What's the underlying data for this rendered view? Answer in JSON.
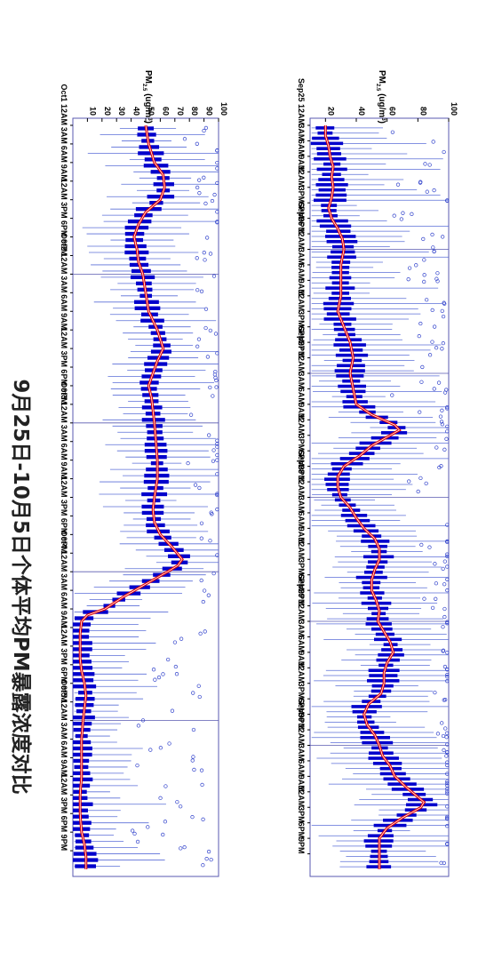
{
  "title": "9月25日-10月5日个体平均PM暴露浓度对比",
  "colors": {
    "box": "#0000cc",
    "whisker": "#5b6fd8",
    "outlier": "#3344cc",
    "mean_line": "#e00000",
    "frame": "#5a5ab0"
  },
  "chart_data": [
    {
      "type": "box",
      "orientation": "vertical-time",
      "ylabel": "PM",
      "ylabel_sub": "2.5",
      "ylabel_unit": " (ug/m",
      "ylabel_sup": "3",
      "ylabel_close": ")",
      "ylim": [
        10,
        100
      ],
      "value_ticks": [
        "20",
        "40",
        "60",
        "80",
        "100"
      ],
      "value_tick_values": [
        20,
        40,
        60,
        80,
        100
      ],
      "start_hour": 0,
      "end_hour": 144,
      "time_ticks": [
        {
          "t": 0,
          "label": "Sep25 12AM"
        },
        {
          "t": 3,
          "label": "3AM"
        },
        {
          "t": 6,
          "label": "6AM"
        },
        {
          "t": 9,
          "label": "9AM"
        },
        {
          "t": 12,
          "label": "12AM"
        },
        {
          "t": 15,
          "label": "3PM"
        },
        {
          "t": 18,
          "label": "6PM"
        },
        {
          "t": 21,
          "label": "9PM"
        },
        {
          "t": 24,
          "label": "Sep26 12AM"
        },
        {
          "t": 27,
          "label": "3AM"
        },
        {
          "t": 30,
          "label": "6AM"
        },
        {
          "t": 33,
          "label": "9AM"
        },
        {
          "t": 36,
          "label": "12AM"
        },
        {
          "t": 39,
          "label": "3PM"
        },
        {
          "t": 42,
          "label": "6PM"
        },
        {
          "t": 45,
          "label": "9PM"
        },
        {
          "t": 48,
          "label": "Sep27 12AM"
        },
        {
          "t": 51,
          "label": "3AM"
        },
        {
          "t": 54,
          "label": "6AM"
        },
        {
          "t": 57,
          "label": "9AM"
        },
        {
          "t": 60,
          "label": "12AM"
        },
        {
          "t": 63,
          "label": "3PM"
        },
        {
          "t": 66,
          "label": "6PM"
        },
        {
          "t": 69,
          "label": "9PM"
        },
        {
          "t": 72,
          "label": "Sep28 12AM"
        },
        {
          "t": 75,
          "label": "3AM"
        },
        {
          "t": 78,
          "label": "6AM"
        },
        {
          "t": 81,
          "label": "9AM"
        },
        {
          "t": 84,
          "label": "12AM"
        },
        {
          "t": 87,
          "label": "3PM"
        },
        {
          "t": 90,
          "label": "6PM"
        },
        {
          "t": 93,
          "label": "9PM"
        },
        {
          "t": 96,
          "label": "Sep29 12AM"
        },
        {
          "t": 99,
          "label": "3AM"
        },
        {
          "t": 102,
          "label": "6AM"
        },
        {
          "t": 105,
          "label": "9AM"
        },
        {
          "t": 108,
          "label": "12AM"
        },
        {
          "t": 111,
          "label": "3PM"
        },
        {
          "t": 114,
          "label": "6PM"
        },
        {
          "t": 117,
          "label": "9PM"
        },
        {
          "t": 120,
          "label": "Sep30 12AM"
        },
        {
          "t": 123,
          "label": "3AM"
        },
        {
          "t": 126,
          "label": "6AM"
        },
        {
          "t": 129,
          "label": "9AM"
        },
        {
          "t": 132,
          "label": "12AM"
        },
        {
          "t": 135,
          "label": "3PM"
        },
        {
          "t": 138,
          "label": "6PM"
        },
        {
          "t": 141,
          "label": "9PM"
        }
      ],
      "mean_series": [
        [
          0,
          20
        ],
        [
          2,
          20
        ],
        [
          4,
          22
        ],
        [
          6,
          23
        ],
        [
          8,
          25
        ],
        [
          10,
          24
        ],
        [
          12,
          25
        ],
        [
          14,
          24
        ],
        [
          16,
          22
        ],
        [
          18,
          24
        ],
        [
          20,
          28
        ],
        [
          22,
          31
        ],
        [
          24,
          32
        ],
        [
          27,
          30
        ],
        [
          30,
          30
        ],
        [
          33,
          30
        ],
        [
          36,
          28
        ],
        [
          39,
          32
        ],
        [
          42,
          36
        ],
        [
          45,
          38
        ],
        [
          48,
          36
        ],
        [
          51,
          38
        ],
        [
          54,
          40
        ],
        [
          56,
          50
        ],
        [
          58,
          65
        ],
        [
          59,
          68
        ],
        [
          60,
          62
        ],
        [
          62,
          50
        ],
        [
          64,
          42
        ],
        [
          66,
          32
        ],
        [
          68,
          28
        ],
        [
          70,
          28
        ],
        [
          72,
          30
        ],
        [
          74,
          36
        ],
        [
          76,
          40
        ],
        [
          78,
          45
        ],
        [
          80,
          52
        ],
        [
          82,
          55
        ],
        [
          84,
          55
        ],
        [
          86,
          52
        ],
        [
          88,
          50
        ],
        [
          90,
          50
        ],
        [
          92,
          53
        ],
        [
          94,
          55
        ],
        [
          96,
          54
        ],
        [
          98,
          58
        ],
        [
          100,
          62
        ],
        [
          102,
          64
        ],
        [
          104,
          60
        ],
        [
          106,
          58
        ],
        [
          108,
          58
        ],
        [
          110,
          56
        ],
        [
          112,
          48
        ],
        [
          114,
          45
        ],
        [
          116,
          47
        ],
        [
          118,
          52
        ],
        [
          120,
          55
        ],
        [
          122,
          57
        ],
        [
          124,
          62
        ],
        [
          126,
          65
        ],
        [
          128,
          72
        ],
        [
          130,
          80
        ],
        [
          131,
          84
        ],
        [
          132,
          82
        ],
        [
          134,
          70
        ],
        [
          136,
          60
        ],
        [
          138,
          55
        ],
        [
          140,
          55
        ],
        [
          142,
          55
        ],
        [
          144,
          55
        ]
      ],
      "spread": 8
    },
    {
      "type": "box",
      "orientation": "vertical-time",
      "ylabel": "PM",
      "ylabel_sub": "2.5",
      "ylabel_unit": " (ug/m",
      "ylabel_sup": "3",
      "ylabel_close": ")",
      "ylim": [
        0,
        100
      ],
      "value_ticks": [
        "10",
        "20",
        "30",
        "40",
        "50",
        "60",
        "70",
        "80",
        "90",
        "100"
      ],
      "value_tick_values": [
        10,
        20,
        30,
        40,
        50,
        60,
        70,
        80,
        90,
        100
      ],
      "start_hour": 0,
      "end_hour": 120,
      "time_ticks": [
        {
          "t": 0,
          "label": "Oct1 12AM"
        },
        {
          "t": 3,
          "label": "3AM"
        },
        {
          "t": 6,
          "label": "6AM"
        },
        {
          "t": 9,
          "label": "9AM"
        },
        {
          "t": 12,
          "label": "12AM"
        },
        {
          "t": 15,
          "label": "3PM"
        },
        {
          "t": 18,
          "label": "6PM"
        },
        {
          "t": 21,
          "label": "9PM"
        },
        {
          "t": 24,
          "label": "Oct2 12AM"
        },
        {
          "t": 27,
          "label": "3AM"
        },
        {
          "t": 30,
          "label": "6AM"
        },
        {
          "t": 33,
          "label": "9AM"
        },
        {
          "t": 36,
          "label": "12AM"
        },
        {
          "t": 39,
          "label": "3PM"
        },
        {
          "t": 42,
          "label": "6PM"
        },
        {
          "t": 45,
          "label": "9PM"
        },
        {
          "t": 48,
          "label": "Oct3 12AM"
        },
        {
          "t": 51,
          "label": "3AM"
        },
        {
          "t": 54,
          "label": "6AM"
        },
        {
          "t": 57,
          "label": "9AM"
        },
        {
          "t": 60,
          "label": "12AM"
        },
        {
          "t": 63,
          "label": "3PM"
        },
        {
          "t": 66,
          "label": "6PM"
        },
        {
          "t": 69,
          "label": "9PM"
        },
        {
          "t": 72,
          "label": "Oct4 12AM"
        },
        {
          "t": 75,
          "label": "3AM"
        },
        {
          "t": 78,
          "label": "6AM"
        },
        {
          "t": 81,
          "label": "9AM"
        },
        {
          "t": 84,
          "label": "12AM"
        },
        {
          "t": 87,
          "label": "3PM"
        },
        {
          "t": 90,
          "label": "6PM"
        },
        {
          "t": 93,
          "label": "9PM"
        },
        {
          "t": 96,
          "label": "Oct5 12AM"
        },
        {
          "t": 99,
          "label": "3AM"
        },
        {
          "t": 102,
          "label": "6AM"
        },
        {
          "t": 105,
          "label": "9AM"
        },
        {
          "t": 108,
          "label": "12AM"
        },
        {
          "t": 111,
          "label": "3PM"
        },
        {
          "t": 114,
          "label": "6PM"
        },
        {
          "t": 117,
          "label": "9PM"
        }
      ],
      "mean_series": [
        [
          0,
          50
        ],
        [
          3,
          52
        ],
        [
          6,
          56
        ],
        [
          8,
          62
        ],
        [
          10,
          63
        ],
        [
          12,
          60
        ],
        [
          14,
          50
        ],
        [
          16,
          45
        ],
        [
          18,
          42
        ],
        [
          20,
          44
        ],
        [
          22,
          45
        ],
        [
          24,
          48
        ],
        [
          27,
          50
        ],
        [
          30,
          52
        ],
        [
          33,
          58
        ],
        [
          36,
          62
        ],
        [
          38,
          58
        ],
        [
          40,
          55
        ],
        [
          42,
          52
        ],
        [
          44,
          54
        ],
        [
          46,
          55
        ],
        [
          48,
          56
        ],
        [
          51,
          57
        ],
        [
          54,
          58
        ],
        [
          57,
          58
        ],
        [
          60,
          56
        ],
        [
          62,
          55
        ],
        [
          64,
          56
        ],
        [
          66,
          60
        ],
        [
          68,
          68
        ],
        [
          70,
          75
        ],
        [
          71,
          72
        ],
        [
          72,
          65
        ],
        [
          74,
          50
        ],
        [
          76,
          35
        ],
        [
          78,
          22
        ],
        [
          79,
          10
        ],
        [
          80,
          6
        ],
        [
          82,
          5
        ],
        [
          84,
          5
        ],
        [
          86,
          5
        ],
        [
          88,
          6
        ],
        [
          90,
          8
        ],
        [
          92,
          9
        ],
        [
          94,
          8
        ],
        [
          96,
          7
        ],
        [
          99,
          6
        ],
        [
          102,
          6
        ],
        [
          105,
          6
        ],
        [
          108,
          5
        ],
        [
          111,
          5
        ],
        [
          114,
          6
        ],
        [
          116,
          8
        ],
        [
          118,
          9
        ],
        [
          120,
          9
        ]
      ],
      "spread": 7
    }
  ]
}
